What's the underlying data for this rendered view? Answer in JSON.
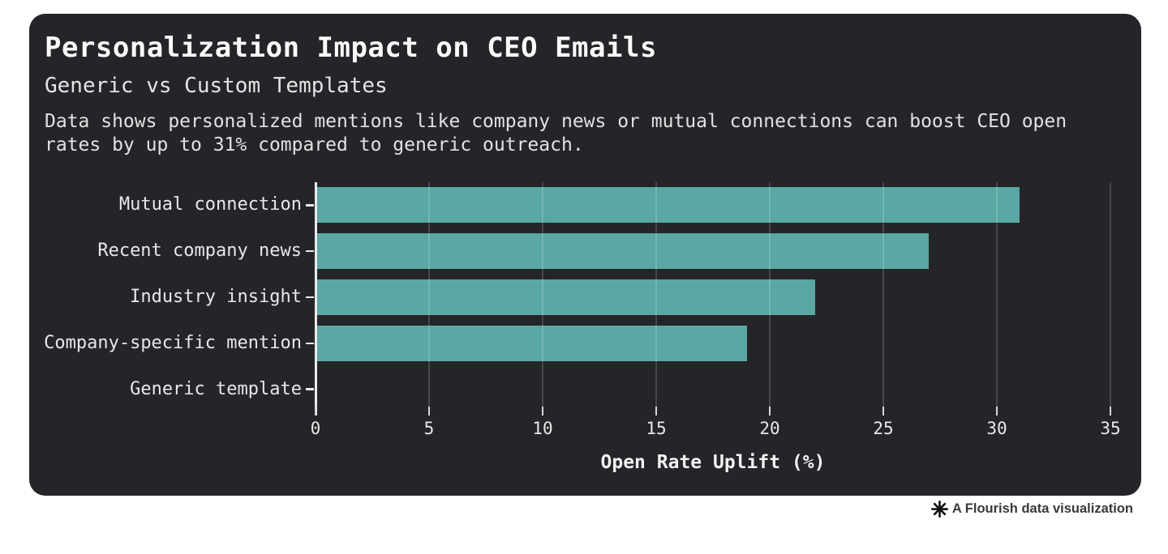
{
  "card": {
    "background": "#232529",
    "title": "Personalization Impact on CEO Emails",
    "subtitle": "Generic vs Custom Templates",
    "description": "Data shows personalized mentions like company news or mutual connections can boost CEO open rates by up to 31% compared to generic outreach."
  },
  "chart_data": {
    "type": "bar",
    "orientation": "horizontal",
    "title": "Personalization Impact on CEO Emails",
    "subtitle": "Generic vs Custom Templates",
    "categories": [
      "Mutual connection",
      "Recent company news",
      "Industry insight",
      "Company-specific mention",
      "Generic template"
    ],
    "values": [
      31,
      27,
      22,
      19,
      0
    ],
    "xlabel": "Open Rate Uplift (%)",
    "ylabel": "",
    "xlim": [
      0,
      35
    ],
    "xticks": [
      0,
      5,
      10,
      15,
      20,
      25,
      30,
      35
    ],
    "grid": true,
    "legend": false,
    "bar_color": "#5AA7A4",
    "axis_color": "#EAEAEA",
    "tick_color": "#D8D8D8",
    "gridline_color": "rgba(255,255,255,0.16)",
    "label_color": "#E8E8E8"
  },
  "attribution": {
    "icon": "flourish-asterisk",
    "label": "A Flourish data visualization",
    "color": "#383838"
  }
}
